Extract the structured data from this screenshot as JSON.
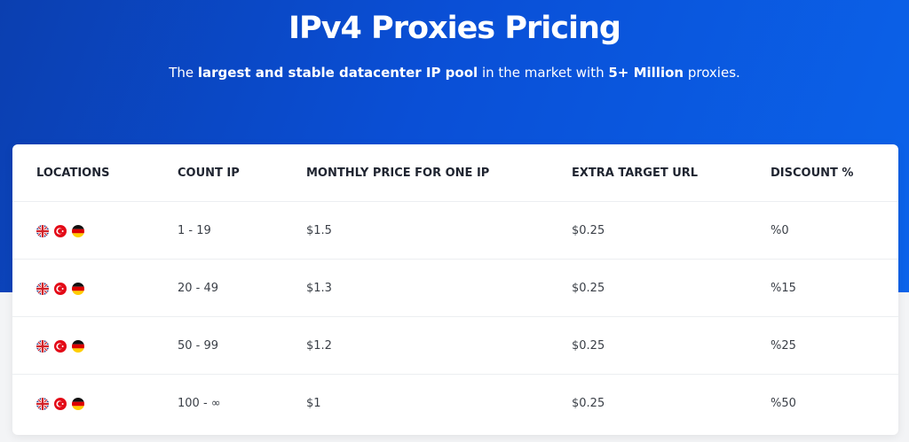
{
  "hero": {
    "title": "IPv4 Proxies Pricing",
    "subtitle_pre": "The ",
    "subtitle_bold1": "largest and stable datacenter IP pool",
    "subtitle_mid": " in the market with ",
    "subtitle_bold2": "5+ Million",
    "subtitle_post": " proxies."
  },
  "table": {
    "headers": [
      "LOCATIONS",
      "COUNT IP",
      "MONTHLY PRICE FOR ONE IP",
      "EXTRA TARGET URL",
      "DISCOUNT %"
    ],
    "location_flags": [
      "uk-flag-icon",
      "turkey-flag-icon",
      "germany-flag-icon"
    ],
    "rows": [
      {
        "count": "1 - 19",
        "price": "$1.5",
        "extra": "$0.25",
        "discount": "%0"
      },
      {
        "count": "20 - 49",
        "price": "$1.3",
        "extra": "$0.25",
        "discount": "%15"
      },
      {
        "count": "50 - 99",
        "price": "$1.2",
        "extra": "$0.25",
        "discount": "%25"
      },
      {
        "count": "100 - ∞",
        "price": "$1",
        "extra": "$0.25",
        "discount": "%50"
      }
    ]
  }
}
